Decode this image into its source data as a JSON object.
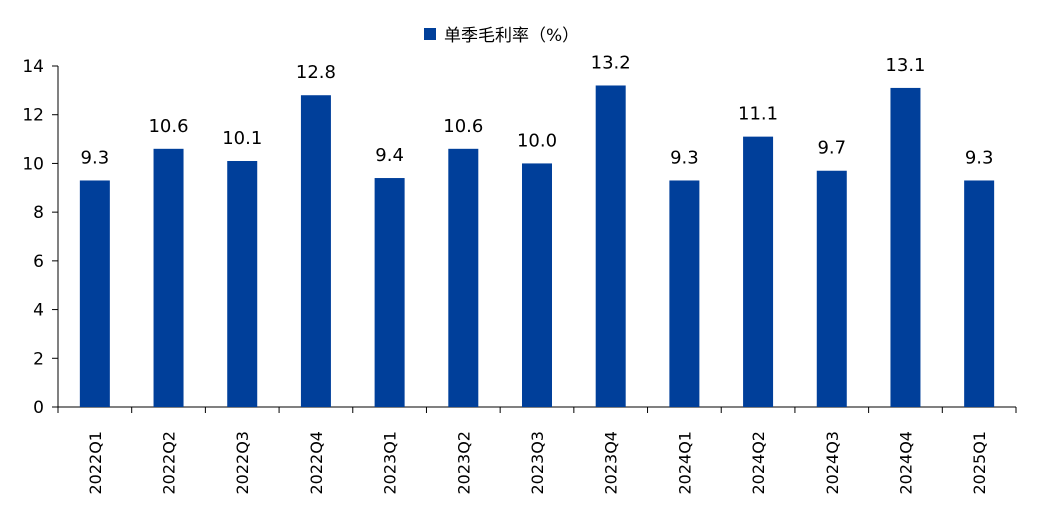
{
  "chart_data": {
    "type": "bar",
    "categories": [
      "2022Q1",
      "2022Q2",
      "2022Q3",
      "2022Q4",
      "2023Q1",
      "2023Q2",
      "2023Q3",
      "2023Q4",
      "2024Q1",
      "2024Q2",
      "2024Q3",
      "2024Q4",
      "2025Q1"
    ],
    "series": [
      {
        "name": "单季毛利率（%）",
        "values": [
          9.3,
          10.6,
          10.1,
          12.8,
          9.4,
          10.6,
          10.0,
          13.2,
          9.3,
          11.1,
          9.7,
          13.1,
          9.3
        ],
        "data_labels": [
          "9.3",
          "10.6",
          "10.1",
          "12.8",
          "9.4",
          "10.6",
          "10.0",
          "13.2",
          "9.3",
          "11.1",
          "9.7",
          "13.1",
          "9.3"
        ]
      }
    ],
    "ylim": [
      0,
      14
    ],
    "yticks": [
      0,
      2,
      4,
      6,
      8,
      10,
      12,
      14
    ],
    "ytick_labels": [
      "0",
      "2",
      "4",
      "6",
      "8",
      "10",
      "12",
      "14"
    ],
    "grid": false,
    "legend_position": "top-center",
    "bar_color": "#003f9a",
    "xlabel": "",
    "ylabel": "",
    "title": ""
  }
}
